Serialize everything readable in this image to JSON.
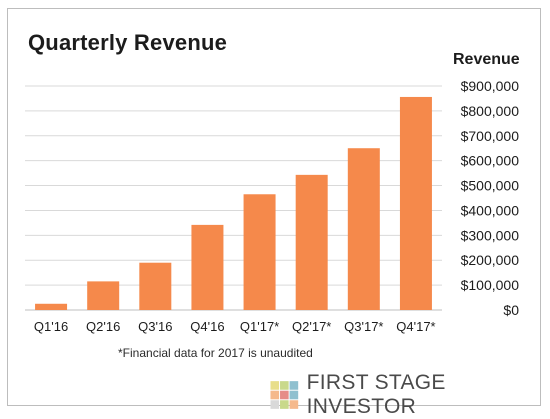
{
  "chart_data": {
    "type": "bar",
    "title": "Quarterly Revenue",
    "ylabel": "Revenue",
    "xlabel": "",
    "categories": [
      "Q1'16",
      "Q2'16",
      "Q3'16",
      "Q4'16",
      "Q1'17*",
      "Q2'17*",
      "Q3'17*",
      "Q4'17*"
    ],
    "values": [
      25000,
      115000,
      190000,
      342000,
      465000,
      543000,
      650000,
      856000
    ],
    "ylim": [
      0,
      900000
    ],
    "yticks": [
      0,
      100000,
      200000,
      300000,
      400000,
      500000,
      600000,
      700000,
      800000,
      900000
    ],
    "ytick_labels": [
      "$0",
      "$100,000",
      "$200,000",
      "$300,000",
      "$400,000",
      "$500,000",
      "$600,000",
      "$700,000",
      "$800,000",
      "$900,000"
    ],
    "grid": true,
    "y_axis_side": "right",
    "bar_color": "#F5894B",
    "grid_color": "#d9d9d9"
  },
  "footnote": "*Financial data for 2017 is unaudited",
  "brand": {
    "name": "FIRST STAGE INVESTOR",
    "logo_colors": [
      "#E8DE8A",
      "#C9D98B",
      "#8FC0CF",
      "#F5B98C",
      "#E68C88",
      "#D9D9D9"
    ]
  }
}
